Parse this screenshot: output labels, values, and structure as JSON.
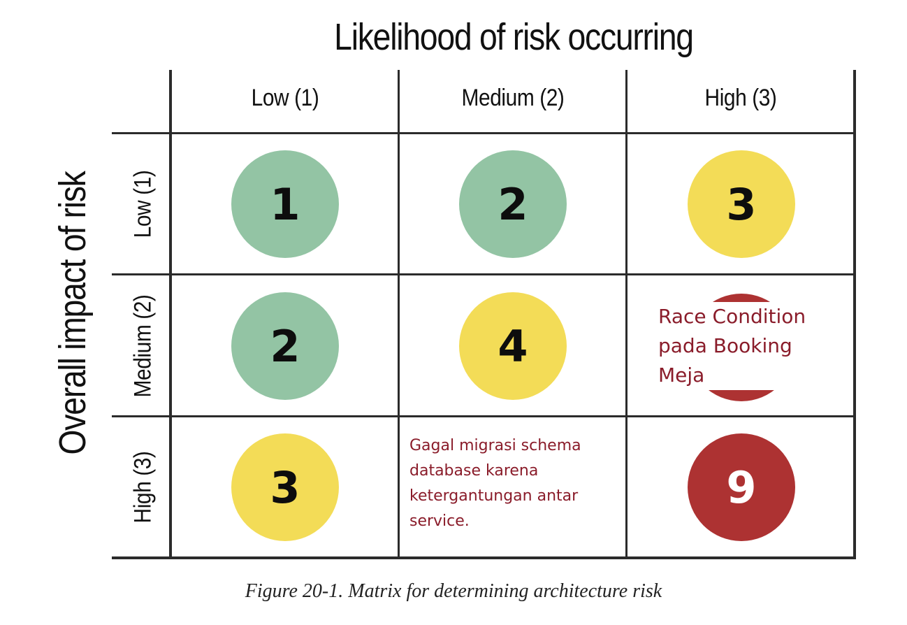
{
  "x_axis_title": "Likelihood of risk occurring",
  "y_axis_title": "Overall impact of risk",
  "columns": [
    "Low (1)",
    "Medium (2)",
    "High (3)"
  ],
  "rows": [
    "Low (1)",
    "Medium (2)",
    "High (3)"
  ],
  "cells": {
    "r1c1": "1",
    "r1c2": "2",
    "r1c3": "3",
    "r2c1": "2",
    "r2c2": "4",
    "r3c1": "3",
    "r3c3": "9"
  },
  "notes": {
    "race_condition": [
      "Race Condition",
      "pada Booking",
      "Meja"
    ],
    "gagal_migrasi": [
      "Gagal migrasi schema",
      "database karena",
      "ketergantungan antar",
      "service."
    ]
  },
  "colors": {
    "low": "#93c4a4",
    "medium": "#f3dc57",
    "high": "#ad3232",
    "note_text": "#8a1c2a"
  },
  "caption": "Figure 20-1. Matrix for determining architecture risk"
}
